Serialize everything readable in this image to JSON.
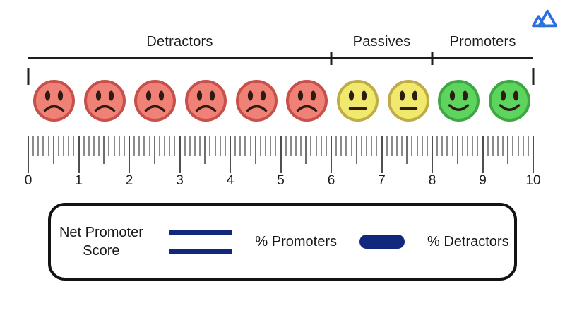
{
  "header": {
    "logo": {
      "label": "mailmodo-logo",
      "color": "#2B6FE0"
    }
  },
  "scale": {
    "min": 0,
    "max": 10,
    "minor_ticks_per_unit": 10,
    "tick_labels": [
      "0",
      "1",
      "2",
      "3",
      "4",
      "5",
      "6",
      "7",
      "8",
      "9",
      "10"
    ],
    "feature_color": "#2e1c12",
    "segments": [
      {
        "label": "Detractors",
        "from": 0,
        "to": 6,
        "face_type": "frown",
        "face_count": 6,
        "face_fill": "#EF8177",
        "face_stroke": "#C7504A"
      },
      {
        "label": "Passives",
        "from": 6,
        "to": 8,
        "face_type": "neutral",
        "face_count": 2,
        "face_fill": "#F0E96E",
        "face_stroke": "#C0AB44"
      },
      {
        "label": "Promoters",
        "from": 8,
        "to": 10,
        "face_type": "smile",
        "face_count": 2,
        "face_fill": "#5DD45D",
        "face_stroke": "#3FA644"
      }
    ]
  },
  "formula": {
    "result_label": "Net Promoter Score",
    "operator_equals": "=",
    "term_positive": "% Promoters",
    "operator_minus": "−",
    "term_negative": "% Detractors",
    "symbol_color": "#12287D"
  }
}
